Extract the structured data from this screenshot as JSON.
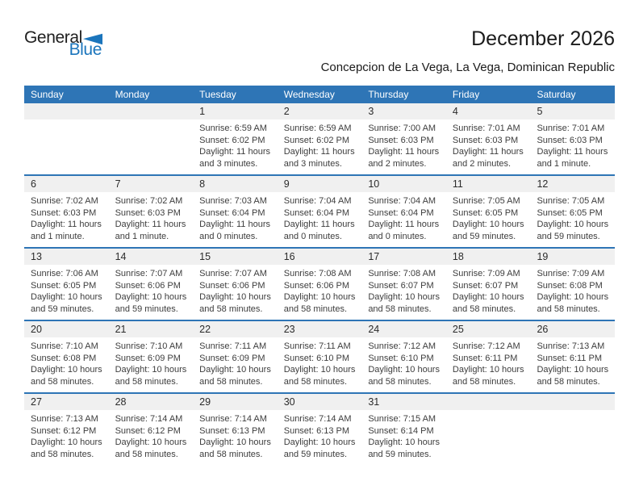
{
  "logo": {
    "part1": "General",
    "part2": "Blue"
  },
  "header": {
    "title": "December 2026",
    "subtitle": "Concepcion de La Vega, La Vega, Dominican Republic"
  },
  "weekdays": [
    "Sunday",
    "Monday",
    "Tuesday",
    "Wednesday",
    "Thursday",
    "Friday",
    "Saturday"
  ],
  "weeks": [
    [
      null,
      null,
      {
        "day": "1",
        "sunrise": "Sunrise: 6:59 AM",
        "sunset": "Sunset: 6:02 PM",
        "daylight": "Daylight: 11 hours and 3 minutes."
      },
      {
        "day": "2",
        "sunrise": "Sunrise: 6:59 AM",
        "sunset": "Sunset: 6:02 PM",
        "daylight": "Daylight: 11 hours and 3 minutes."
      },
      {
        "day": "3",
        "sunrise": "Sunrise: 7:00 AM",
        "sunset": "Sunset: 6:03 PM",
        "daylight": "Daylight: 11 hours and 2 minutes."
      },
      {
        "day": "4",
        "sunrise": "Sunrise: 7:01 AM",
        "sunset": "Sunset: 6:03 PM",
        "daylight": "Daylight: 11 hours and 2 minutes."
      },
      {
        "day": "5",
        "sunrise": "Sunrise: 7:01 AM",
        "sunset": "Sunset: 6:03 PM",
        "daylight": "Daylight: 11 hours and 1 minute."
      }
    ],
    [
      {
        "day": "6",
        "sunrise": "Sunrise: 7:02 AM",
        "sunset": "Sunset: 6:03 PM",
        "daylight": "Daylight: 11 hours and 1 minute."
      },
      {
        "day": "7",
        "sunrise": "Sunrise: 7:02 AM",
        "sunset": "Sunset: 6:03 PM",
        "daylight": "Daylight: 11 hours and 1 minute."
      },
      {
        "day": "8",
        "sunrise": "Sunrise: 7:03 AM",
        "sunset": "Sunset: 6:04 PM",
        "daylight": "Daylight: 11 hours and 0 minutes."
      },
      {
        "day": "9",
        "sunrise": "Sunrise: 7:04 AM",
        "sunset": "Sunset: 6:04 PM",
        "daylight": "Daylight: 11 hours and 0 minutes."
      },
      {
        "day": "10",
        "sunrise": "Sunrise: 7:04 AM",
        "sunset": "Sunset: 6:04 PM",
        "daylight": "Daylight: 11 hours and 0 minutes."
      },
      {
        "day": "11",
        "sunrise": "Sunrise: 7:05 AM",
        "sunset": "Sunset: 6:05 PM",
        "daylight": "Daylight: 10 hours and 59 minutes."
      },
      {
        "day": "12",
        "sunrise": "Sunrise: 7:05 AM",
        "sunset": "Sunset: 6:05 PM",
        "daylight": "Daylight: 10 hours and 59 minutes."
      }
    ],
    [
      {
        "day": "13",
        "sunrise": "Sunrise: 7:06 AM",
        "sunset": "Sunset: 6:05 PM",
        "daylight": "Daylight: 10 hours and 59 minutes."
      },
      {
        "day": "14",
        "sunrise": "Sunrise: 7:07 AM",
        "sunset": "Sunset: 6:06 PM",
        "daylight": "Daylight: 10 hours and 59 minutes."
      },
      {
        "day": "15",
        "sunrise": "Sunrise: 7:07 AM",
        "sunset": "Sunset: 6:06 PM",
        "daylight": "Daylight: 10 hours and 58 minutes."
      },
      {
        "day": "16",
        "sunrise": "Sunrise: 7:08 AM",
        "sunset": "Sunset: 6:06 PM",
        "daylight": "Daylight: 10 hours and 58 minutes."
      },
      {
        "day": "17",
        "sunrise": "Sunrise: 7:08 AM",
        "sunset": "Sunset: 6:07 PM",
        "daylight": "Daylight: 10 hours and 58 minutes."
      },
      {
        "day": "18",
        "sunrise": "Sunrise: 7:09 AM",
        "sunset": "Sunset: 6:07 PM",
        "daylight": "Daylight: 10 hours and 58 minutes."
      },
      {
        "day": "19",
        "sunrise": "Sunrise: 7:09 AM",
        "sunset": "Sunset: 6:08 PM",
        "daylight": "Daylight: 10 hours and 58 minutes."
      }
    ],
    [
      {
        "day": "20",
        "sunrise": "Sunrise: 7:10 AM",
        "sunset": "Sunset: 6:08 PM",
        "daylight": "Daylight: 10 hours and 58 minutes."
      },
      {
        "day": "21",
        "sunrise": "Sunrise: 7:10 AM",
        "sunset": "Sunset: 6:09 PM",
        "daylight": "Daylight: 10 hours and 58 minutes."
      },
      {
        "day": "22",
        "sunrise": "Sunrise: 7:11 AM",
        "sunset": "Sunset: 6:09 PM",
        "daylight": "Daylight: 10 hours and 58 minutes."
      },
      {
        "day": "23",
        "sunrise": "Sunrise: 7:11 AM",
        "sunset": "Sunset: 6:10 PM",
        "daylight": "Daylight: 10 hours and 58 minutes."
      },
      {
        "day": "24",
        "sunrise": "Sunrise: 7:12 AM",
        "sunset": "Sunset: 6:10 PM",
        "daylight": "Daylight: 10 hours and 58 minutes."
      },
      {
        "day": "25",
        "sunrise": "Sunrise: 7:12 AM",
        "sunset": "Sunset: 6:11 PM",
        "daylight": "Daylight: 10 hours and 58 minutes."
      },
      {
        "day": "26",
        "sunrise": "Sunrise: 7:13 AM",
        "sunset": "Sunset: 6:11 PM",
        "daylight": "Daylight: 10 hours and 58 minutes."
      }
    ],
    [
      {
        "day": "27",
        "sunrise": "Sunrise: 7:13 AM",
        "sunset": "Sunset: 6:12 PM",
        "daylight": "Daylight: 10 hours and 58 minutes."
      },
      {
        "day": "28",
        "sunrise": "Sunrise: 7:14 AM",
        "sunset": "Sunset: 6:12 PM",
        "daylight": "Daylight: 10 hours and 58 minutes."
      },
      {
        "day": "29",
        "sunrise": "Sunrise: 7:14 AM",
        "sunset": "Sunset: 6:13 PM",
        "daylight": "Daylight: 10 hours and 58 minutes."
      },
      {
        "day": "30",
        "sunrise": "Sunrise: 7:14 AM",
        "sunset": "Sunset: 6:13 PM",
        "daylight": "Daylight: 10 hours and 59 minutes."
      },
      {
        "day": "31",
        "sunrise": "Sunrise: 7:15 AM",
        "sunset": "Sunset: 6:14 PM",
        "daylight": "Daylight: 10 hours and 59 minutes."
      },
      null,
      null
    ]
  ],
  "colors": {
    "header_blue": "#2E75B6",
    "divider_blue": "#2E75B6",
    "day_band_gray": "#F0F0F0",
    "logo_blue": "#1B75BC"
  }
}
